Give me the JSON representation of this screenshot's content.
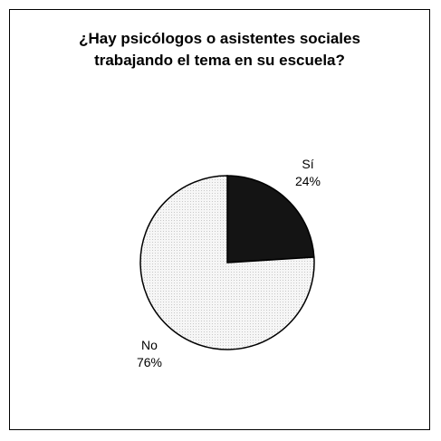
{
  "chart_data": {
    "type": "pie",
    "title_lines": [
      "¿Hay psicólogos o asistentes sociales",
      "trabajando el tema en su escuela?"
    ],
    "slices": [
      {
        "label": "Sí",
        "value": 24,
        "value_text": "24%",
        "color": "#141414"
      },
      {
        "label": "No",
        "value": 76,
        "value_text": "76%",
        "color": "#f3f3f3"
      }
    ],
    "start": "12 o'clock, clockwise",
    "legend": "none"
  }
}
